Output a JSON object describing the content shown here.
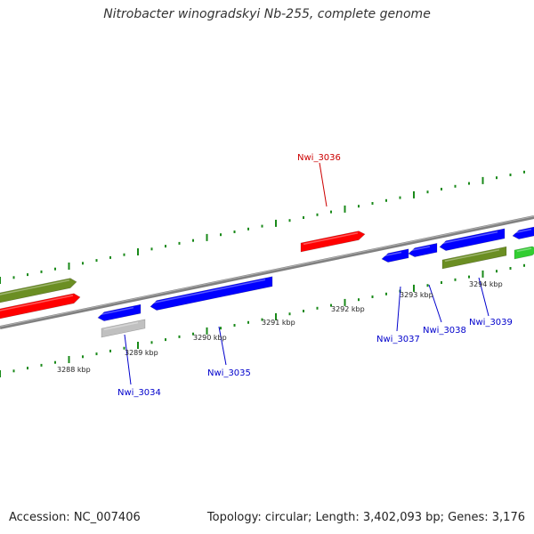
{
  "title": "Nitrobacter winogradskyi Nb-255, complete genome",
  "footer": {
    "accession": "Accession: NC_007406",
    "summary": "Topology: circular; Length: 3,402,093 bp; Genes: 3,176"
  },
  "colors": {
    "backbone": "#808080",
    "tick": "#1a8a1a",
    "red_label": "#cc0000",
    "blue_label": "#0000cc"
  },
  "ruler_ticks": [
    {
      "label": "3288 kbp"
    },
    {
      "label": "3289 kbp"
    },
    {
      "label": "3290 kbp"
    },
    {
      "label": "3291 kbp"
    },
    {
      "label": "3292 kbp"
    },
    {
      "label": "3293 kbp"
    },
    {
      "label": "3294 kbp"
    }
  ],
  "gene_labels": [
    {
      "name": "Nwi_3034",
      "color": "blue"
    },
    {
      "name": "Nwi_3035",
      "color": "blue"
    },
    {
      "name": "Nwi_3036",
      "color": "red"
    },
    {
      "name": "Nwi_3037",
      "color": "blue"
    },
    {
      "name": "Nwi_3038",
      "color": "blue"
    },
    {
      "name": "Nwi_3039",
      "color": "blue"
    }
  ],
  "features": [
    {
      "type": "cds",
      "color": "#ff0000",
      "strand": "forward"
    },
    {
      "type": "cds",
      "color": "#6b8e23",
      "strand": "forward"
    },
    {
      "type": "cds",
      "color": "#0000ff",
      "strand": "reverse"
    },
    {
      "type": "cds",
      "color": "#c0c0c0",
      "strand": "reverse"
    },
    {
      "type": "cds",
      "color": "#0000ff",
      "strand": "reverse"
    },
    {
      "type": "cds",
      "color": "#ff0000",
      "strand": "forward"
    },
    {
      "type": "cds",
      "color": "#0000ff",
      "strand": "reverse"
    },
    {
      "type": "cds",
      "color": "#0000ff",
      "strand": "reverse"
    },
    {
      "type": "cds",
      "color": "#0000ff",
      "strand": "reverse"
    },
    {
      "type": "cds",
      "color": "#6b8e23",
      "strand": "forward"
    },
    {
      "type": "cds",
      "color": "#0000ff",
      "strand": "reverse"
    },
    {
      "type": "cds",
      "color": "#32cd32",
      "strand": "forward"
    }
  ]
}
